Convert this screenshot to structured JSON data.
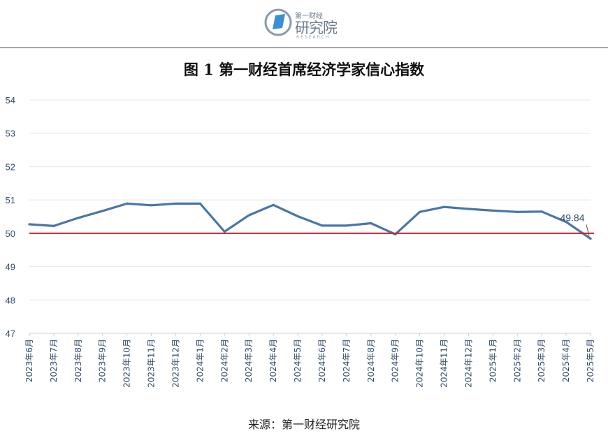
{
  "logo": {
    "top_text": "第一财经",
    "main_text": "研究院",
    "sub_text": "RESEARCH"
  },
  "title": "图 1 第一财经首席经济学家信心指数",
  "source": "来源：第一财经研究院",
  "chart_data": {
    "type": "line",
    "title": "图 1 第一财经首席经济学家信心指数",
    "xlabel": "",
    "ylabel": "",
    "ylim": [
      47,
      54
    ],
    "yticks": [
      47,
      48,
      49,
      50,
      51,
      52,
      53,
      54
    ],
    "grid": true,
    "categories": [
      "2023年6月",
      "2023年7月",
      "2023年8月",
      "2023年9月",
      "2023年10月",
      "2023年11月",
      "2023年12月",
      "2024年1月",
      "2024年2月",
      "2024年3月",
      "2024年4月",
      "2024年5月",
      "2024年6月",
      "2024年7月",
      "2024年8月",
      "2024年9月",
      "2024年10月",
      "2024年11月",
      "2024年12月",
      "2025年1月",
      "2025年2月",
      "2025年3月",
      "2025年4月",
      "2025年5月"
    ],
    "series": [
      {
        "name": "",
        "color": "#4a76a8",
        "values": [
          50.27,
          50.22,
          50.46,
          50.67,
          50.89,
          50.84,
          50.89,
          50.89,
          50.05,
          50.54,
          50.85,
          50.51,
          50.23,
          50.23,
          50.3,
          49.97,
          50.64,
          50.79,
          50.73,
          50.68,
          50.64,
          50.65,
          50.34,
          49.84
        ]
      }
    ],
    "reference_line": {
      "value": 50,
      "color": "#cc1f2a"
    },
    "annotation": {
      "text": "49.84",
      "category": "2025年5月",
      "value": 49.84
    },
    "colors": {
      "grid": "#dce8f0",
      "tick_text": "#2f4a6a"
    }
  }
}
